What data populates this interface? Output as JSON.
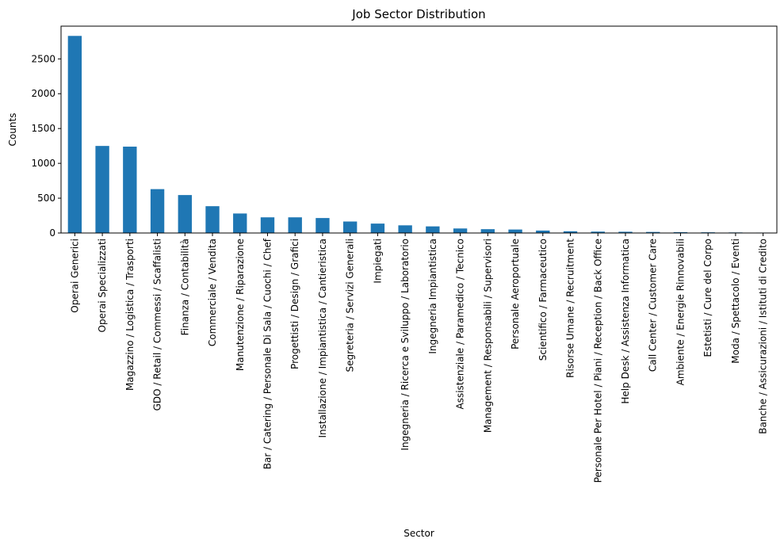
{
  "chart_data": {
    "type": "bar",
    "title": "Job Sector Distribution",
    "xlabel": "Sector",
    "ylabel": "Counts",
    "ylim": [
      0,
      2970
    ],
    "yticks": [
      0,
      500,
      1000,
      1500,
      2000,
      2500
    ],
    "grid": false,
    "bar_color": "#1f77b4",
    "categories": [
      "Operai Generici",
      "Operai Specializzati",
      "Magazzino / Logistica / Trasporti",
      "GDO / Retail / Commessi / Scaffalisti",
      "Finanza / Contabilità",
      "Commerciale / Vendita",
      "Manutenzione / Riparazione",
      "Bar / Catering / Personale Di Sala / Cuochi / Chef",
      "Progettisti / Design / Grafici",
      "Installazione / Impiantistica / Cantieristica",
      "Segreteria / Servizi Generali",
      "Impiegati",
      "Ingegneria / Ricerca e Sviluppo / Laboratorio",
      "Ingegneria Impiantistica",
      "Assistenziale / Paramedico / Tecnico",
      "Management / Responsabili / Supervisori",
      "Personale Aeroportuale",
      "Scientifico / Farmaceutico",
      "Risorse Umane / Recruitment",
      "Personale Per Hotel / Piani / Reception / Back Office",
      "Help Desk / Assistenza Informatica",
      "Call Center / Customer Care",
      "Ambiente / Energie Rinnovabili",
      "Estetisti / Cure del Corpo",
      "Moda / Spettacolo / Eventi",
      "Banche / Assicurazioni / Istituti di Credito"
    ],
    "values": [
      2830,
      1250,
      1240,
      630,
      545,
      385,
      280,
      225,
      225,
      215,
      165,
      135,
      110,
      95,
      65,
      55,
      50,
      35,
      25,
      20,
      18,
      15,
      12,
      10,
      8,
      6
    ]
  }
}
